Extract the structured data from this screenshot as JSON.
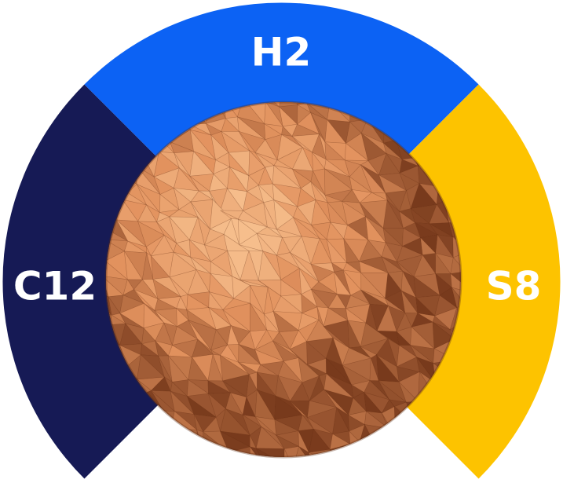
{
  "segments": [
    {
      "id": "left",
      "label": "C12",
      "color": "#161a55"
    },
    {
      "id": "top",
      "label": "H2",
      "color": "#0c62f4"
    },
    {
      "id": "right",
      "label": "S8",
      "color": "#fdc300"
    }
  ],
  "sphere": {
    "description_name": "faceted-sphere",
    "base_color": "#e0925e",
    "light_color": "#f4b98a",
    "dark_color": "#7a3e1f"
  }
}
